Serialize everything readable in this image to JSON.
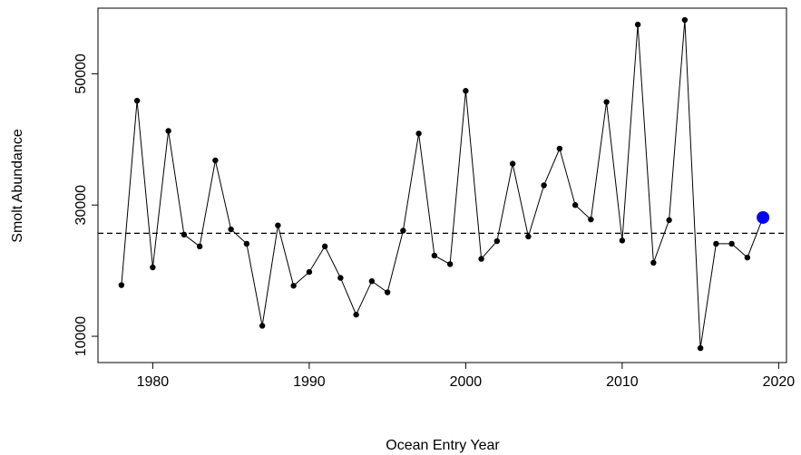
{
  "chart_data": {
    "type": "line",
    "title": "",
    "xlabel": "Ocean Entry Year",
    "ylabel": "Smolt Abundance",
    "xlim": [
      1976.5,
      2020.5
    ],
    "ylim": [
      6000,
      60000
    ],
    "xticks": [
      1980,
      1990,
      2000,
      2010,
      2020
    ],
    "yticks": [
      10000,
      30000,
      50000
    ],
    "grid": false,
    "legend": "none",
    "series": [
      {
        "x": [
          1978,
          1979,
          1980,
          1981,
          1982,
          1983,
          1984,
          1985,
          1986,
          1987,
          1988,
          1989,
          1990,
          1991,
          1992,
          1993,
          1994,
          1995,
          1996,
          1997,
          1998,
          1999,
          2000,
          2001,
          2002,
          2003,
          2004,
          2005,
          2006,
          2007,
          2008,
          2009,
          2010,
          2011,
          2012,
          2013,
          2014,
          2015,
          2016,
          2017,
          2018,
          2019
        ],
        "values": [
          17800,
          45900,
          20500,
          41300,
          25500,
          23700,
          36800,
          26300,
          24100,
          11600,
          26900,
          17700,
          19800,
          23700,
          18900,
          13300,
          18400,
          16700,
          26100,
          40900,
          22300,
          21000,
          47400,
          21800,
          24500,
          36300,
          25200,
          33000,
          38600,
          30000,
          27800,
          45700,
          24600,
          57500,
          21200,
          27700,
          58200,
          8200,
          24100,
          24100,
          22000,
          28100
        ],
        "color": "#000000",
        "marker": "filled-circle"
      }
    ],
    "highlight_point": {
      "x": 2019,
      "y": 28100,
      "color": "#0000ff"
    },
    "reference_line": {
      "y": 25700,
      "style": "dashed",
      "color": "#000000"
    }
  }
}
